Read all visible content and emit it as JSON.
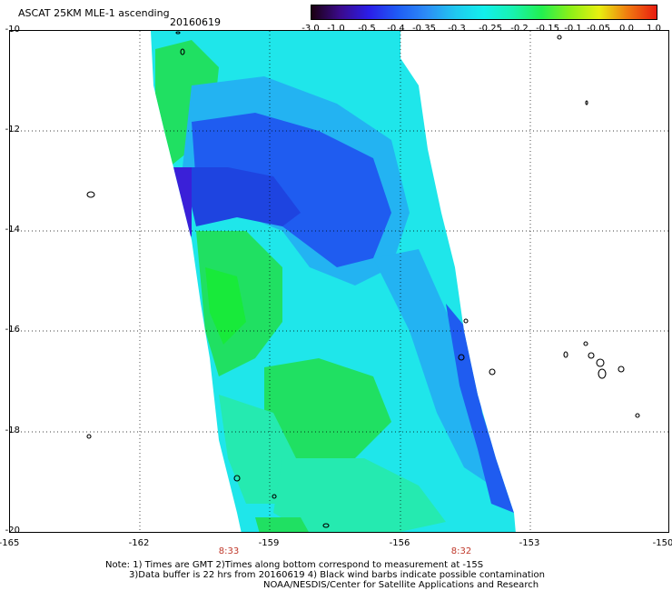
{
  "header": {
    "title": "ASCAT 25KM MLE-1 ascending",
    "date": "20160619"
  },
  "colorbar": {
    "labels": [
      "-3.0",
      "-1.0",
      "-0.5",
      "-0.4",
      "-0.35",
      "-0.3",
      "-0.25",
      "-0.2",
      "-0.15",
      "-0.1",
      "-0.05",
      "0.0",
      "1.0"
    ],
    "colors": [
      "#1a0010",
      "#3b0a8c",
      "#2b1ee8",
      "#1f5cf5",
      "#2c8cf6",
      "#20c8f0",
      "#12f0ec",
      "#18f2b0",
      "#22f050",
      "#8cf018",
      "#e8f010",
      "#f07a10",
      "#e81c10"
    ]
  },
  "axes": {
    "lat_labels": [
      "-10",
      "-12",
      "-14",
      "-16",
      "-18",
      "-20"
    ],
    "lon_labels": [
      "-165",
      "-162",
      "-159",
      "-156",
      "-153",
      "-150"
    ],
    "time_labels": [
      "8:33",
      "8:32"
    ]
  },
  "swath_colors": {
    "cyan": "#1fe6ea",
    "light_blue": "#23b3f2",
    "blue": "#1f5cf0",
    "deep_blue": "#1e44e0",
    "purple": "#3a20d8",
    "green": "#20e062",
    "bright_green": "#18ea3a",
    "seafoam": "#25eab0"
  },
  "notes": {
    "line1": "Note: 1) Times are GMT  2)Times along bottom correspond to measurement at -15S",
    "line2": "3)Data buffer is 22 hrs from 20160619  4) Black wind barbs indicate possible contamination",
    "line3": "NOAA/NESDIS/Center for Satellite Applications and Research"
  }
}
